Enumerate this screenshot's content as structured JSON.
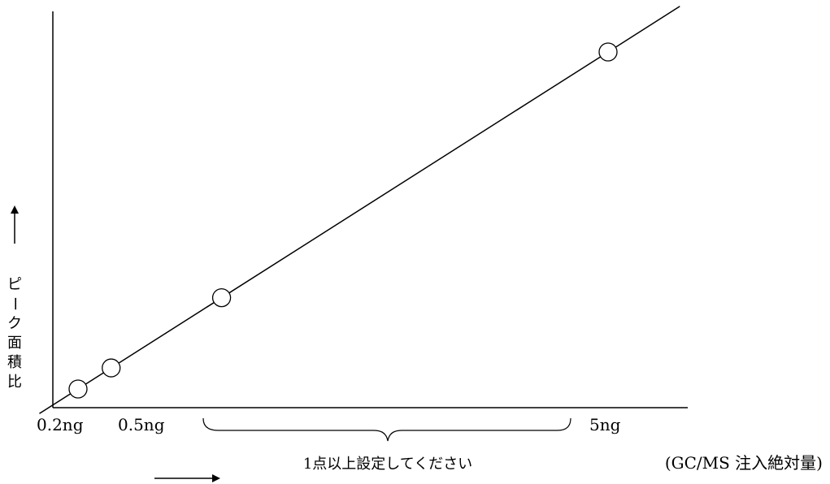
{
  "chart_data": {
    "type": "line",
    "title": "",
    "ylabel": "ピーク面積比",
    "xlabel": "(GC/MS 注入絶対量)",
    "x_tick_labels": [
      "0.2ng",
      "0.5ng",
      "5ng"
    ],
    "x": [
      0.2,
      0.5,
      1.5,
      5
    ],
    "y": [
      0.2,
      0.5,
      1.5,
      5
    ],
    "xlim": [
      0,
      5.6
    ],
    "ylim": [
      0,
      5.6
    ],
    "annotation": "1点以上設定してください",
    "markers": "open-circle",
    "fit_line": "linear",
    "grid": false,
    "legend": "none",
    "line_color": "#000000"
  }
}
